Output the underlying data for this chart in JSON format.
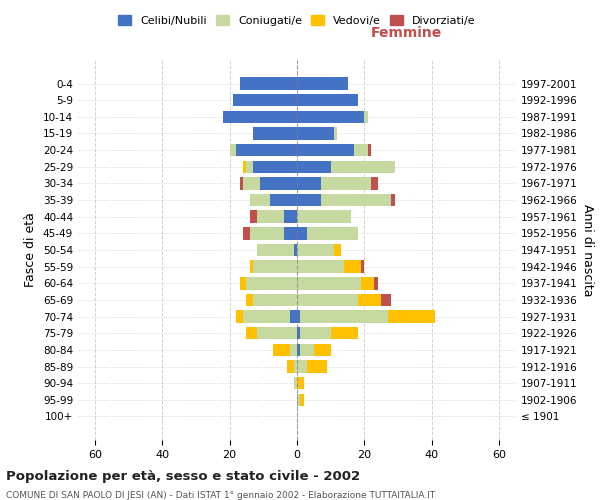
{
  "age_groups": [
    "100+",
    "95-99",
    "90-94",
    "85-89",
    "80-84",
    "75-79",
    "70-74",
    "65-69",
    "60-64",
    "55-59",
    "50-54",
    "45-49",
    "40-44",
    "35-39",
    "30-34",
    "25-29",
    "20-24",
    "15-19",
    "10-14",
    "5-9",
    "0-4"
  ],
  "birth_years": [
    "≤ 1901",
    "1902-1906",
    "1907-1911",
    "1912-1916",
    "1917-1921",
    "1922-1926",
    "1927-1931",
    "1932-1936",
    "1937-1941",
    "1942-1946",
    "1947-1951",
    "1952-1956",
    "1957-1961",
    "1962-1966",
    "1967-1971",
    "1972-1976",
    "1977-1981",
    "1982-1986",
    "1987-1991",
    "1992-1996",
    "1997-2001"
  ],
  "males": {
    "celibi": [
      0,
      0,
      0,
      0,
      0,
      0,
      2,
      0,
      0,
      0,
      1,
      4,
      4,
      8,
      11,
      13,
      18,
      13,
      22,
      19,
      17
    ],
    "coniugati": [
      0,
      0,
      1,
      1,
      2,
      12,
      14,
      13,
      15,
      13,
      11,
      10,
      8,
      6,
      5,
      2,
      2,
      0,
      0,
      0,
      0
    ],
    "vedovi": [
      0,
      0,
      0,
      2,
      5,
      3,
      2,
      2,
      2,
      1,
      0,
      0,
      0,
      0,
      0,
      1,
      0,
      0,
      0,
      0,
      0
    ],
    "divorziati": [
      0,
      0,
      0,
      0,
      0,
      0,
      0,
      0,
      0,
      0,
      0,
      2,
      2,
      0,
      1,
      0,
      0,
      0,
      0,
      0,
      0
    ]
  },
  "females": {
    "nubili": [
      0,
      0,
      0,
      0,
      1,
      1,
      1,
      0,
      0,
      0,
      0,
      3,
      0,
      7,
      7,
      10,
      17,
      11,
      20,
      18,
      15
    ],
    "coniugate": [
      0,
      1,
      0,
      3,
      4,
      9,
      26,
      18,
      19,
      14,
      11,
      15,
      16,
      21,
      15,
      19,
      4,
      1,
      1,
      0,
      0
    ],
    "vedove": [
      0,
      1,
      2,
      6,
      5,
      8,
      14,
      7,
      4,
      5,
      2,
      0,
      0,
      0,
      0,
      0,
      0,
      0,
      0,
      0,
      0
    ],
    "divorziate": [
      0,
      0,
      0,
      0,
      0,
      0,
      0,
      3,
      1,
      1,
      0,
      0,
      0,
      1,
      2,
      0,
      1,
      0,
      0,
      0,
      0
    ]
  },
  "colors": {
    "celibi": "#4472c4",
    "coniugati": "#c5d9a0",
    "vedovi": "#ffc000",
    "divorziati": "#c0504d"
  },
  "xlim": 65,
  "title": "Popolazione per età, sesso e stato civile - 2002",
  "subtitle": "COMUNE DI SAN PAOLO DI JESI (AN) - Dati ISTAT 1° gennaio 2002 - Elaborazione TUTTAITALIA.IT",
  "ylabel_left": "Fasce di età",
  "ylabel_right": "Anni di nascita"
}
